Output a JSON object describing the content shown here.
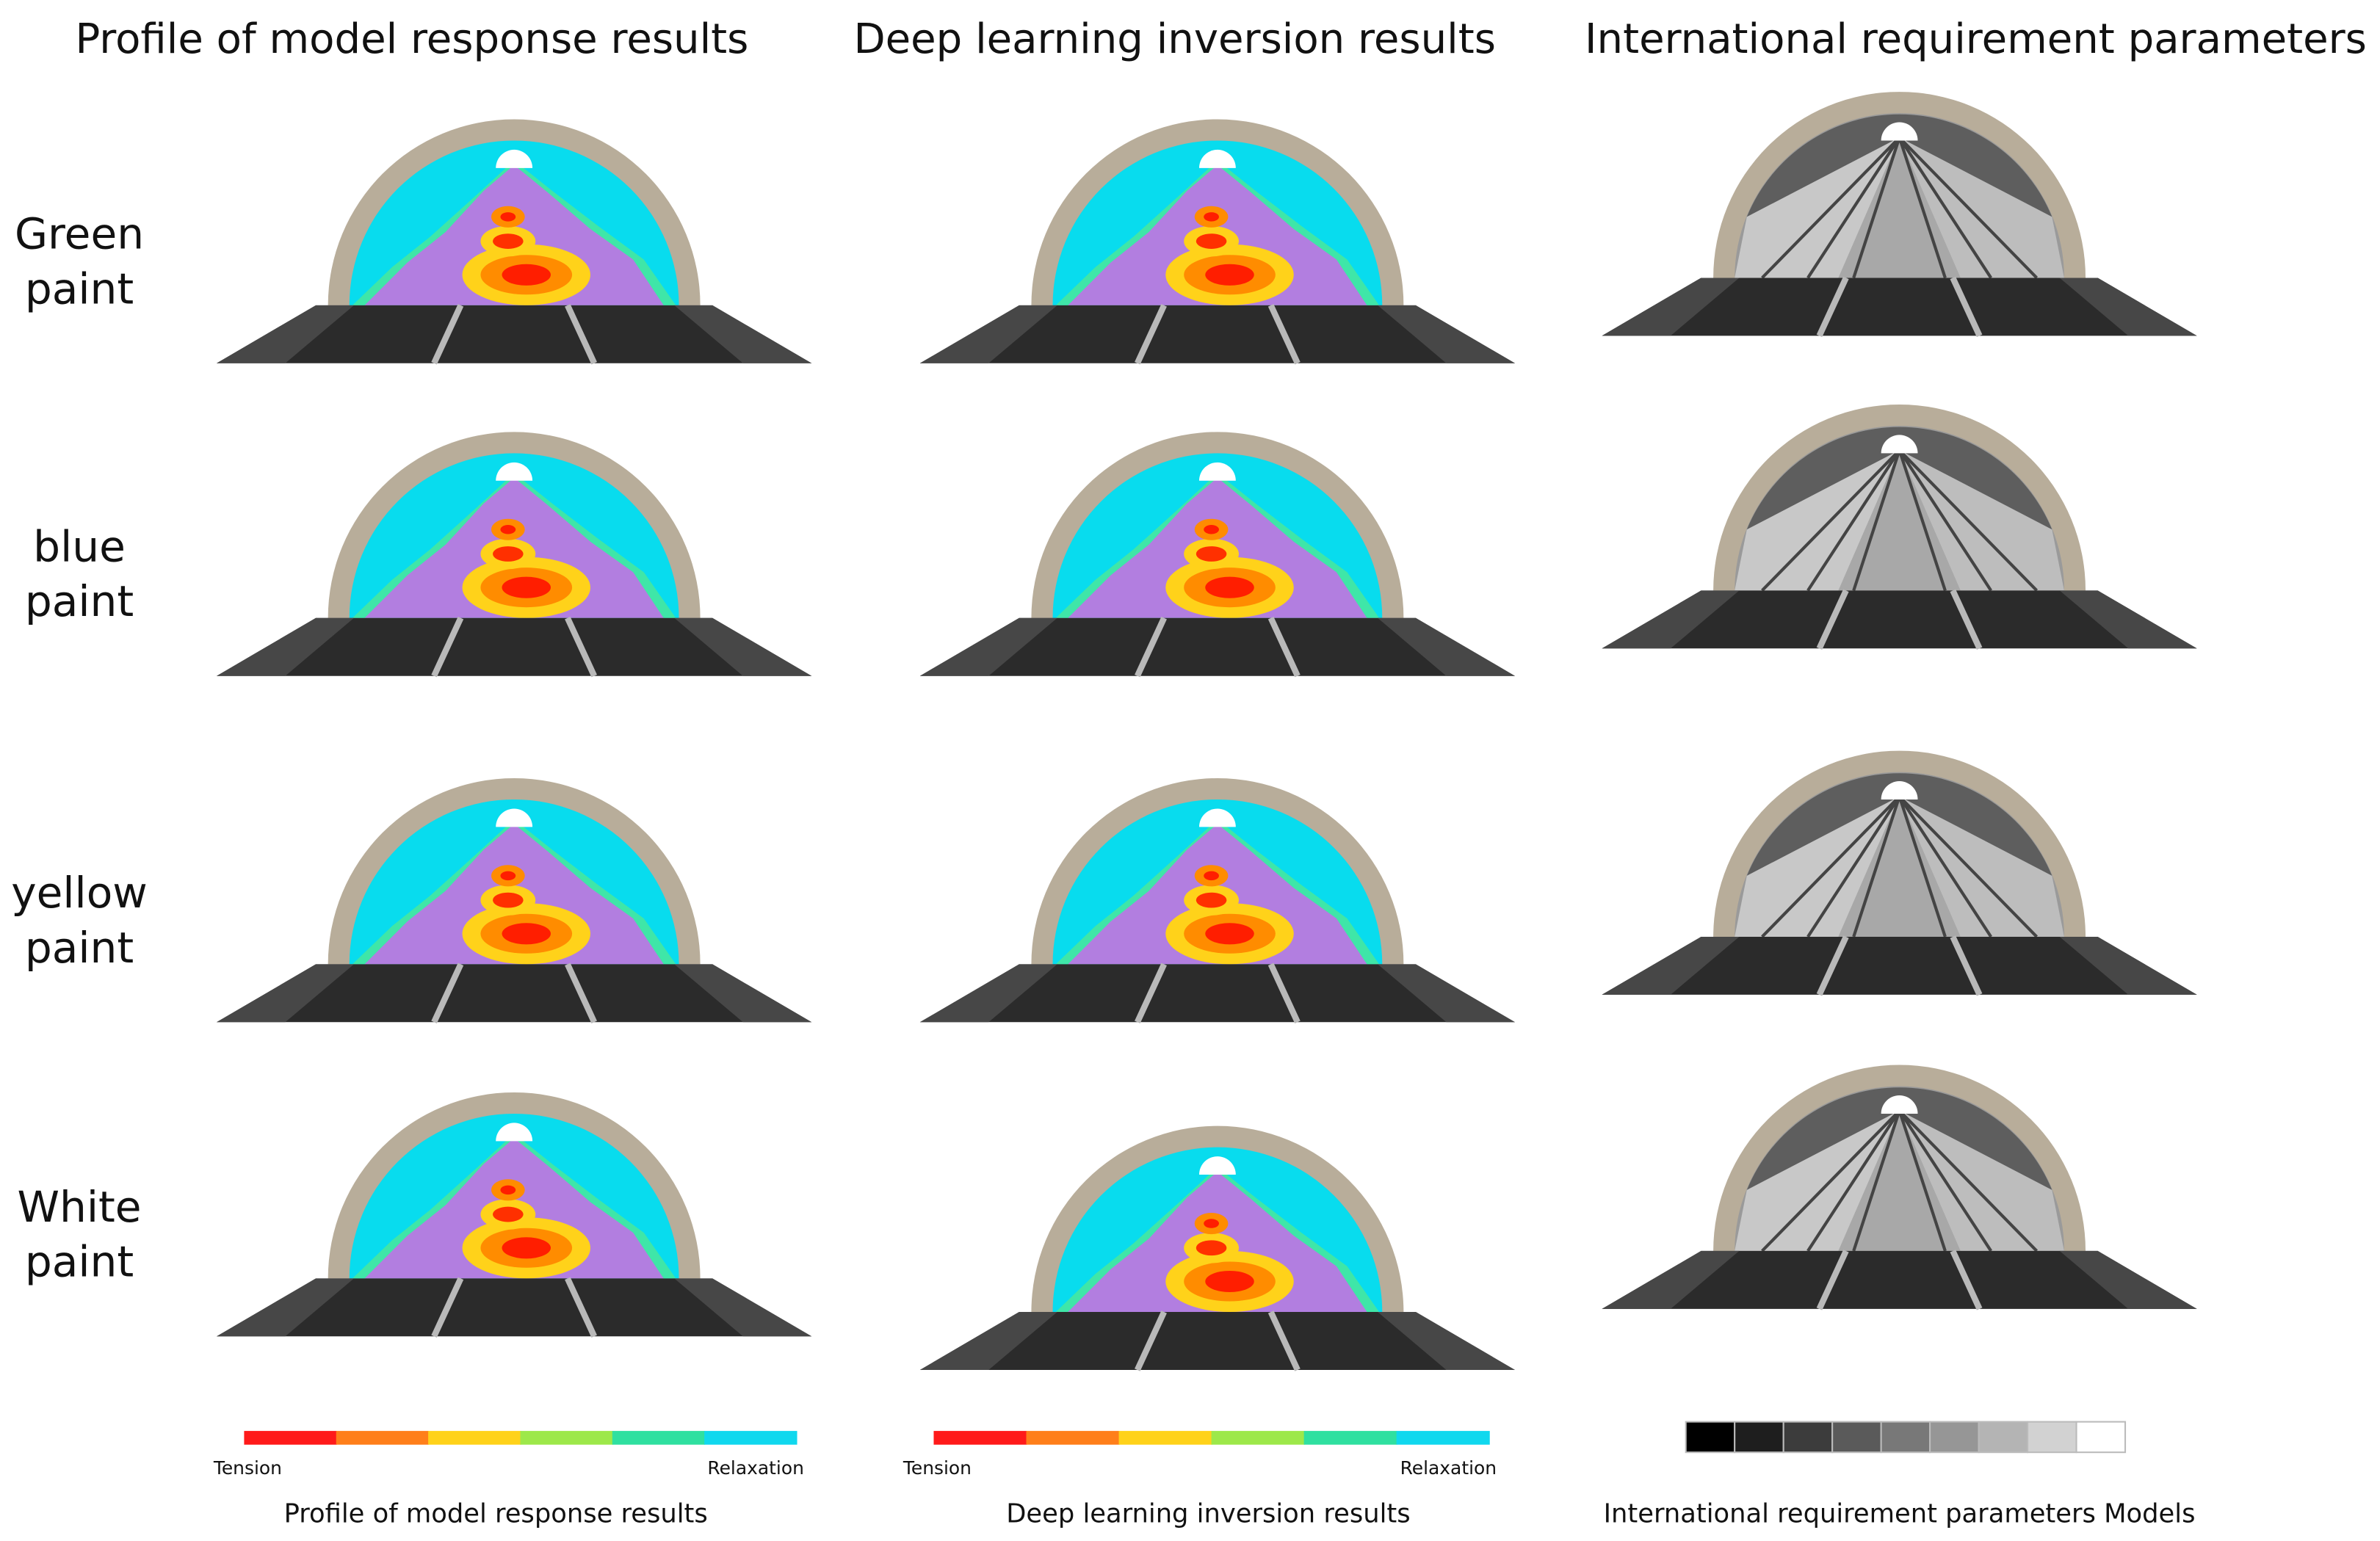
{
  "column_titles": [
    "Profile of model response results",
    "Deep learning inversion results",
    "International requirement parameters"
  ],
  "row_labels": [
    [
      "Green",
      "paint"
    ],
    [
      "blue",
      "paint"
    ],
    [
      "yellow",
      "paint"
    ],
    [
      "White",
      "paint"
    ]
  ],
  "legends": [
    {
      "left": "Tension",
      "right": "Relaxation",
      "caption": "Profile of model response results"
    },
    {
      "left": "Tension",
      "right": "Relaxation",
      "caption": "Deep learning inversion results"
    },
    {
      "caption": "International requirement parameters Models"
    }
  ]
}
